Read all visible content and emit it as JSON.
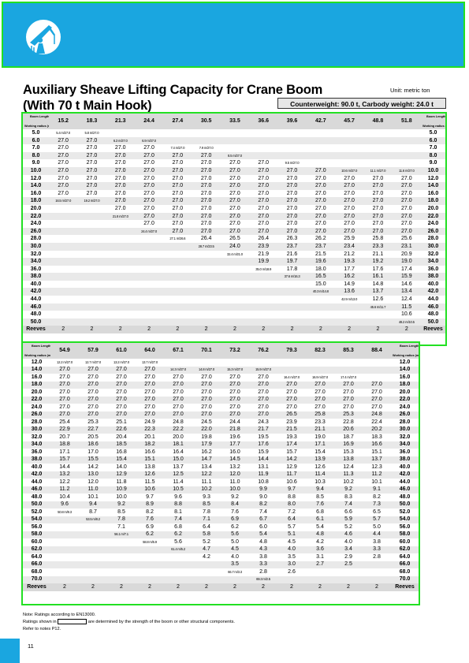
{
  "title_line1": "Auxiliary Sheave Lifting Capacity for Crane Boom",
  "title_line2": "(With 70 t Main Hook)",
  "unit": "Unit: metric ton",
  "counterweight": "Counterweight: 90.0 t, Carbody weight: 24.0 t",
  "colors": {
    "brand": "#1aa6e0",
    "frame": "#22e022",
    "header_bg": "#d9d9d9"
  },
  "logo_icon": "crane-worker-icon",
  "corner": {
    "boom_length": "Boom Length (m)",
    "working_radius": "Working radius (m)"
  },
  "table1": {
    "boom_lengths": [
      "15.2",
      "18.3",
      "21.3",
      "24.4",
      "27.4",
      "30.5",
      "33.5",
      "36.6",
      "39.6",
      "42.7",
      "45.7",
      "48.8",
      "51.8"
    ],
    "rows": [
      {
        "r": "5.0",
        "v": [
          "5.4 m/27.0",
          "5.8 m/27.0",
          "",
          "",
          "",
          "",
          "",
          "",
          "",
          "",
          "",
          "",
          ""
        ]
      },
      {
        "r": "6.0",
        "v": [
          "27.0",
          "27.0",
          "6.3 m/27.0",
          "6.9 m/27.0",
          "",
          "",
          "",
          "",
          "",
          "",
          "",
          "",
          ""
        ]
      },
      {
        "r": "7.0",
        "v": [
          "27.0",
          "27.0",
          "27.0",
          "27.0",
          "7.4 m/27.0",
          "7.9 m/27.0",
          "",
          "",
          "",
          "",
          "",
          "",
          ""
        ]
      },
      {
        "r": "8.0",
        "v": [
          "27.0",
          "27.0",
          "27.0",
          "27.0",
          "27.0",
          "27.0",
          "8.5 m/27.0",
          "",
          "",
          "",
          "",
          "",
          ""
        ]
      },
      {
        "r": "9.0",
        "v": [
          "27.0",
          "27.0",
          "27.0",
          "27.0",
          "27.0",
          "27.0",
          "27.0",
          "27.0",
          "9.5 m/27.0",
          "",
          "",
          "",
          ""
        ]
      },
      {
        "r": "10.0",
        "v": [
          "27.0",
          "27.0",
          "27.0",
          "27.0",
          "27.0",
          "27.0",
          "27.0",
          "27.0",
          "27.0",
          "27.0",
          "10.6 m/27.0",
          "11.1 m/27.0",
          "11.6 m/27.0"
        ]
      },
      {
        "r": "12.0",
        "v": [
          "27.0",
          "27.0",
          "27.0",
          "27.0",
          "27.0",
          "27.0",
          "27.0",
          "27.0",
          "27.0",
          "27.0",
          "27.0",
          "27.0",
          "27.0"
        ]
      },
      {
        "r": "14.0",
        "v": [
          "27.0",
          "27.0",
          "27.0",
          "27.0",
          "27.0",
          "27.0",
          "27.0",
          "27.0",
          "27.0",
          "27.0",
          "27.0",
          "27.0",
          "27.0"
        ]
      },
      {
        "r": "16.0",
        "v": [
          "27.0",
          "27.0",
          "27.0",
          "27.0",
          "27.0",
          "27.0",
          "27.0",
          "27.0",
          "27.0",
          "27.0",
          "27.0",
          "27.0",
          "27.0"
        ]
      },
      {
        "r": "18.0",
        "v": [
          "16.5 m/27.0",
          "19.2 m/27.0",
          "27.0",
          "27.0",
          "27.0",
          "27.0",
          "27.0",
          "27.0",
          "27.0",
          "27.0",
          "27.0",
          "27.0",
          "27.0"
        ]
      },
      {
        "r": "20.0",
        "v": [
          "",
          "",
          "27.0",
          "27.0",
          "27.0",
          "27.0",
          "27.0",
          "27.0",
          "27.0",
          "27.0",
          "27.0",
          "27.0",
          "27.0"
        ]
      },
      {
        "r": "22.0",
        "v": [
          "",
          "",
          "21.8 m/27.0",
          "27.0",
          "27.0",
          "27.0",
          "27.0",
          "27.0",
          "27.0",
          "27.0",
          "27.0",
          "27.0",
          "27.0"
        ]
      },
      {
        "r": "24.0",
        "v": [
          "",
          "",
          "",
          "27.0",
          "27.0",
          "27.0",
          "27.0",
          "27.0",
          "27.0",
          "27.0",
          "27.0",
          "27.0",
          "27.0"
        ]
      },
      {
        "r": "26.0",
        "v": [
          "",
          "",
          "",
          "24.4 m/27.0",
          "27.0",
          "27.0",
          "27.0",
          "27.0",
          "27.0",
          "27.0",
          "27.0",
          "27.0",
          "27.0"
        ]
      },
      {
        "r": "28.0",
        "v": [
          "",
          "",
          "",
          "",
          "27.1 m/26.6",
          "26.4",
          "26.5",
          "26.4",
          "26.3",
          "26.2",
          "25.9",
          "25.8",
          "25.6"
        ]
      },
      {
        "r": "30.0",
        "v": [
          "",
          "",
          "",
          "",
          "",
          "28.7 m/23.5",
          "24.0",
          "23.9",
          "23.7",
          "23.7",
          "23.4",
          "23.3",
          "23.1"
        ]
      },
      {
        "r": "32.0",
        "v": [
          "",
          "",
          "",
          "",
          "",
          "",
          "32.4 m/21.0",
          "21.9",
          "21.6",
          "21.5",
          "21.2",
          "21.1",
          "20.9"
        ]
      },
      {
        "r": "34.0",
        "v": [
          "",
          "",
          "",
          "",
          "",
          "",
          "",
          "19.9",
          "19.7",
          "19.6",
          "19.3",
          "19.2",
          "19.0"
        ]
      },
      {
        "r": "36.0",
        "v": [
          "",
          "",
          "",
          "",
          "",
          "",
          "",
          "35.0 m/18.9",
          "17.8",
          "18.0",
          "17.7",
          "17.6",
          "17.4"
        ]
      },
      {
        "r": "38.0",
        "v": [
          "",
          "",
          "",
          "",
          "",
          "",
          "",
          "",
          "37.6 m/16.3",
          "16.5",
          "16.2",
          "16.1",
          "15.9"
        ]
      },
      {
        "r": "40.0",
        "v": [
          "",
          "",
          "",
          "",
          "",
          "",
          "",
          "",
          "",
          "15.0",
          "14.9",
          "14.8",
          "14.6"
        ]
      },
      {
        "r": "42.0",
        "v": [
          "",
          "",
          "",
          "",
          "",
          "",
          "",
          "",
          "",
          "40.3 m/14.8",
          "13.6",
          "13.7",
          "13.4"
        ]
      },
      {
        "r": "44.0",
        "v": [
          "",
          "",
          "",
          "",
          "",
          "",
          "",
          "",
          "",
          "",
          "42.9 m/13.0",
          "12.6",
          "12.4"
        ]
      },
      {
        "r": "46.0",
        "v": [
          "",
          "",
          "",
          "",
          "",
          "",
          "",
          "",
          "",
          "",
          "",
          "45.6 m/11.7",
          "11.5"
        ]
      },
      {
        "r": "48.0",
        "v": [
          "",
          "",
          "",
          "",
          "",
          "",
          "",
          "",
          "",
          "",
          "",
          "",
          "10.6"
        ]
      },
      {
        "r": "50.0",
        "v": [
          "",
          "",
          "",
          "",
          "",
          "",
          "",
          "",
          "",
          "",
          "",
          "",
          "48.2 m/10.5"
        ]
      }
    ],
    "reeves_label": "Reeves",
    "reeves": [
      "2",
      "2",
      "2",
      "2",
      "2",
      "2",
      "2",
      "2",
      "2",
      "2",
      "2",
      "2",
      "2"
    ]
  },
  "table2": {
    "boom_lengths": [
      "54.9",
      "57.9",
      "61.0",
      "64.0",
      "67.1",
      "70.1",
      "73.2",
      "76.2",
      "79.3",
      "82.3",
      "85.3",
      "88.4"
    ],
    "rows": [
      {
        "r": "12.0",
        "v": [
          "12.2 m/27.0",
          "12.7 m/27.0",
          "13.2 m/27.0",
          "13.7 m/27.0",
          "",
          "",
          "",
          "",
          "",
          "",
          "",
          ""
        ]
      },
      {
        "r": "14.0",
        "v": [
          "27.0",
          "27.0",
          "27.0",
          "27.0",
          "14.3 m/27.0",
          "14.8 m/27.0",
          "15.3 m/27.0",
          "15.9 m/27.0",
          "",
          "",
          "",
          ""
        ]
      },
      {
        "r": "16.0",
        "v": [
          "27.0",
          "27.0",
          "27.0",
          "27.0",
          "27.0",
          "27.0",
          "27.0",
          "27.0",
          "16.4 m/27.0",
          "16.9 m/27.0",
          "17.4 m/27.0",
          ""
        ]
      },
      {
        "r": "18.0",
        "v": [
          "27.0",
          "27.0",
          "27.0",
          "27.0",
          "27.0",
          "27.0",
          "27.0",
          "27.0",
          "27.0",
          "27.0",
          "27.0",
          "27.0"
        ]
      },
      {
        "r": "20.0",
        "v": [
          "27.0",
          "27.0",
          "27.0",
          "27.0",
          "27.0",
          "27.0",
          "27.0",
          "27.0",
          "27.0",
          "27.0",
          "27.0",
          "27.0"
        ]
      },
      {
        "r": "22.0",
        "v": [
          "27.0",
          "27.0",
          "27.0",
          "27.0",
          "27.0",
          "27.0",
          "27.0",
          "27.0",
          "27.0",
          "27.0",
          "27.0",
          "27.0"
        ]
      },
      {
        "r": "24.0",
        "v": [
          "27.0",
          "27.0",
          "27.0",
          "27.0",
          "27.0",
          "27.0",
          "27.0",
          "27.0",
          "27.0",
          "27.0",
          "27.0",
          "27.0"
        ]
      },
      {
        "r": "26.0",
        "v": [
          "27.0",
          "27.0",
          "27.0",
          "27.0",
          "27.0",
          "27.0",
          "27.0",
          "27.0",
          "26.5",
          "25.8",
          "25.3",
          "24.8"
        ]
      },
      {
        "r": "28.0",
        "v": [
          "25.4",
          "25.3",
          "25.1",
          "24.9",
          "24.8",
          "24.5",
          "24.4",
          "24.3",
          "23.9",
          "23.3",
          "22.8",
          "22.4"
        ]
      },
      {
        "r": "30.0",
        "v": [
          "22.9",
          "22.7",
          "22.6",
          "22.3",
          "22.2",
          "22.0",
          "21.8",
          "21.7",
          "21.5",
          "21.1",
          "20.6",
          "20.2"
        ]
      },
      {
        "r": "32.0",
        "v": [
          "20.7",
          "20.5",
          "20.4",
          "20.1",
          "20.0",
          "19.8",
          "19.6",
          "19.5",
          "19.3",
          "19.0",
          "18.7",
          "18.3"
        ]
      },
      {
        "r": "34.0",
        "v": [
          "18.8",
          "18.6",
          "18.5",
          "18.2",
          "18.1",
          "17.9",
          "17.7",
          "17.6",
          "17.4",
          "17.1",
          "16.9",
          "16.6"
        ]
      },
      {
        "r": "36.0",
        "v": [
          "17.1",
          "17.0",
          "16.8",
          "16.6",
          "16.4",
          "16.2",
          "16.0",
          "15.9",
          "15.7",
          "15.4",
          "15.3",
          "15.1"
        ]
      },
      {
        "r": "38.0",
        "v": [
          "15.7",
          "15.5",
          "15.4",
          "15.1",
          "15.0",
          "14.7",
          "14.5",
          "14.4",
          "14.2",
          "13.9",
          "13.8",
          "13.7"
        ]
      },
      {
        "r": "40.0",
        "v": [
          "14.4",
          "14.2",
          "14.0",
          "13.8",
          "13.7",
          "13.4",
          "13.2",
          "13.1",
          "12.9",
          "12.6",
          "12.4",
          "12.3"
        ]
      },
      {
        "r": "42.0",
        "v": [
          "13.2",
          "13.0",
          "12.9",
          "12.6",
          "12.5",
          "12.2",
          "12.0",
          "11.9",
          "11.7",
          "11.4",
          "11.3",
          "11.2"
        ]
      },
      {
        "r": "44.0",
        "v": [
          "12.2",
          "12.0",
          "11.8",
          "11.5",
          "11.4",
          "11.1",
          "11.0",
          "10.8",
          "10.6",
          "10.3",
          "10.2",
          "10.1"
        ]
      },
      {
        "r": "46.0",
        "v": [
          "11.2",
          "11.0",
          "10.9",
          "10.6",
          "10.5",
          "10.2",
          "10.0",
          "9.9",
          "9.7",
          "9.4",
          "9.2",
          "9.1"
        ]
      },
      {
        "r": "48.0",
        "v": [
          "10.4",
          "10.1",
          "10.0",
          "9.7",
          "9.6",
          "9.3",
          "9.2",
          "9.0",
          "8.8",
          "8.5",
          "8.3",
          "8.2"
        ]
      },
      {
        "r": "50.0",
        "v": [
          "9.6",
          "9.4",
          "9.2",
          "8.9",
          "8.8",
          "8.5",
          "8.4",
          "8.2",
          "8.0",
          "7.6",
          "7.4",
          "7.3"
        ]
      },
      {
        "r": "52.0",
        "v": [
          "50.8 m/9.3",
          "8.7",
          "8.5",
          "8.2",
          "8.1",
          "7.8",
          "7.6",
          "7.4",
          "7.2",
          "6.8",
          "6.6",
          "6.5"
        ]
      },
      {
        "r": "54.0",
        "v": [
          "",
          "53.5 m/8.2",
          "7.8",
          "7.6",
          "7.4",
          "7.1",
          "6.9",
          "6.7",
          "6.4",
          "6.1",
          "5.9",
          "5.7"
        ]
      },
      {
        "r": "56.0",
        "v": [
          "",
          "",
          "7.1",
          "6.9",
          "6.8",
          "6.4",
          "6.2",
          "6.0",
          "5.7",
          "5.4",
          "5.2",
          "5.0"
        ]
      },
      {
        "r": "58.0",
        "v": [
          "",
          "",
          "56.1 m/7.1",
          "6.2",
          "6.2",
          "5.8",
          "5.6",
          "5.4",
          "5.1",
          "4.8",
          "4.6",
          "4.4"
        ]
      },
      {
        "r": "60.0",
        "v": [
          "",
          "",
          "",
          "58.8 m/5.9",
          "5.6",
          "5.2",
          "5.0",
          "4.8",
          "4.5",
          "4.2",
          "4.0",
          "3.8"
        ]
      },
      {
        "r": "62.0",
        "v": [
          "",
          "",
          "",
          "",
          "61.4 m/5.2",
          "4.7",
          "4.5",
          "4.3",
          "4.0",
          "3.6",
          "3.4",
          "3.3"
        ]
      },
      {
        "r": "64.0",
        "v": [
          "",
          "",
          "",
          "",
          "",
          "4.2",
          "4.0",
          "3.8",
          "3.5",
          "3.1",
          "2.9",
          "2.8"
        ]
      },
      {
        "r": "66.0",
        "v": [
          "",
          "",
          "",
          "",
          "",
          "",
          "3.5",
          "3.3",
          "3.0",
          "2.7",
          "2.5",
          ""
        ]
      },
      {
        "r": "68.0",
        "v": [
          "",
          "",
          "",
          "",
          "",
          "",
          "66.7 m/3.3",
          "2.8",
          "2.6",
          "",
          "",
          ""
        ]
      },
      {
        "r": "70.0",
        "v": [
          "",
          "",
          "",
          "",
          "",
          "",
          "",
          "69.3 m/2.5",
          "",
          "",
          "",
          ""
        ]
      }
    ],
    "reeves_label": "Reeves",
    "reeves": [
      "2",
      "2",
      "2",
      "2",
      "2",
      "2",
      "2",
      "2",
      "2",
      "2",
      "2",
      "2"
    ]
  },
  "notes": {
    "line1": "Note: Ratings according to EN13000.",
    "line2_pre": "Ratings shown in",
    "line2_post": "are determined by the strength of the boom or other structural components.",
    "line3": "Refer to notes P12."
  },
  "page_number": "11"
}
